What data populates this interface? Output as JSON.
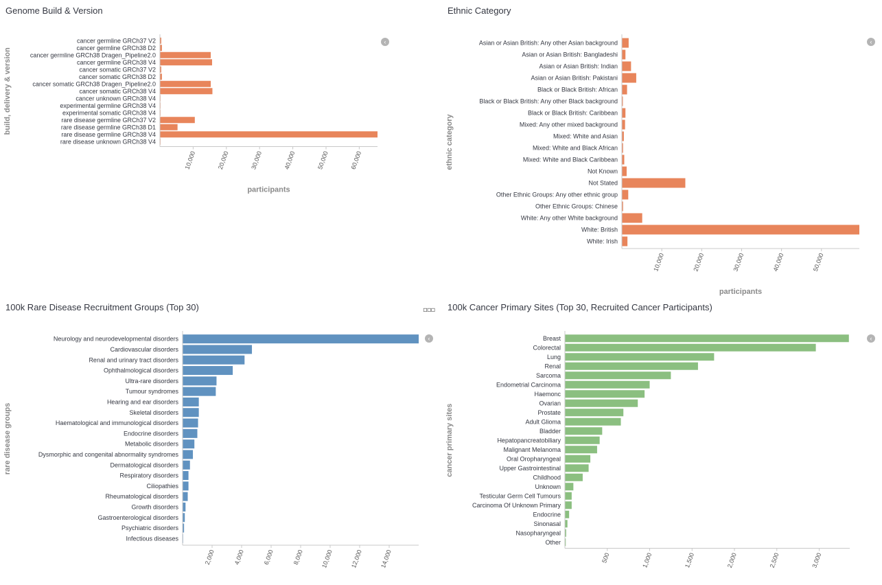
{
  "panels": [
    {
      "title": "Genome Build & Version",
      "icon": "chevron-left-icon",
      "chart_data": {
        "type": "bar",
        "orientation": "horizontal",
        "color": "#e8855b",
        "ylabel": "build, delivery & version",
        "xlabel": "participants",
        "xlim": [
          0,
          65500
        ],
        "xticks": [
          10000,
          20000,
          30000,
          40000,
          50000,
          60000
        ],
        "xtick_labels": [
          "10,000",
          "20,000",
          "30,000",
          "40,000",
          "50,000",
          "60,000"
        ],
        "categories": [
          "cancer germline GRCh37 V2",
          "cancer germline GRCh38 D2",
          "cancer germline GRCh38 Dragen_Pipeline2.0",
          "cancer germline GRCh38 V4",
          "cancer somatic GRCh37 V2",
          "cancer somatic GRCh38 D2",
          "cancer somatic GRCh38 Dragen_Pipeline2.0",
          "cancer somatic GRCh38 V4",
          "cancer unknown GRCh38 V4",
          "experimental germline GRCh38 V4",
          "experimental somatic GRCh38 V4",
          "rare disease germline GRCh37 V2",
          "rare disease germline GRCh38 D1",
          "rare disease germline GRCh38 V4",
          "rare disease unknown GRCh38 V4"
        ],
        "values": [
          400,
          600,
          15300,
          15700,
          400,
          600,
          15300,
          15800,
          80,
          80,
          80,
          10500,
          5300,
          65500,
          80
        ]
      }
    },
    {
      "title": "Ethnic Category",
      "icon": "chevron-left-icon",
      "chart_data": {
        "type": "bar",
        "orientation": "horizontal",
        "color": "#e8855b",
        "ylabel": "ethnic category",
        "xlabel": "participants",
        "xlim": [
          0,
          59500
        ],
        "xticks": [
          10000,
          20000,
          30000,
          40000,
          50000
        ],
        "xtick_labels": [
          "10,000",
          "20,000",
          "30,000",
          "40,000",
          "50,000"
        ],
        "categories": [
          "Asian or Asian British: Any other Asian background",
          "Asian or Asian British: Bangladeshi",
          "Asian or Asian British: Indian",
          "Asian or Asian British: Pakistani",
          "Black or Black British: African",
          "Black or Black British: Any other Black background",
          "Black or Black British: Caribbean",
          "Mixed: Any other mixed background",
          "Mixed: White and Asian",
          "Mixed: White and Black African",
          "Mixed: White and Black Caribbean",
          "Not Known",
          "Not Stated",
          "Other Ethnic Groups: Any other ethnic group",
          "Other Ethnic Groups: Chinese",
          "White: Any other White background",
          "White: British",
          "White: Irish"
        ],
        "values": [
          1700,
          900,
          2300,
          3600,
          1300,
          250,
          900,
          800,
          500,
          300,
          600,
          1200,
          15900,
          1600,
          300,
          5100,
          59500,
          1400
        ]
      }
    },
    {
      "title": "100k Rare Disease Recruitment Groups (Top 30)",
      "icon": "chevron-left-icon",
      "menu_icon": "more-options-icon",
      "menu_glyph": "▫▫▫",
      "chart_data": {
        "type": "bar",
        "orientation": "horizontal",
        "color": "#6092c0",
        "ylabel": "rare disease groups",
        "xlabel": "participants",
        "xlim": [
          0,
          16000
        ],
        "xticks": [
          2000,
          4000,
          6000,
          8000,
          10000,
          12000,
          14000
        ],
        "xtick_labels": [
          "2,000",
          "4,000",
          "6,000",
          "8,000",
          "10,000",
          "12,000",
          "14,000"
        ],
        "categories": [
          "Neurology and neurodevelopmental disorders",
          "Cardiovascular disorders",
          "Renal and urinary tract disorders",
          "Ophthalmological disorders",
          "Ultra-rare disorders",
          "Tumour syndromes",
          "Hearing and ear disorders",
          "Skeletal disorders",
          "Haematological and immunological disorders",
          "Endocrine disorders",
          "Metabolic disorders",
          "Dysmorphic and congenital abnormality syndromes",
          "Dermatological disorders",
          "Respiratory disorders",
          "Ciliopathies",
          "Rheumatological disorders",
          "Growth disorders",
          "Gastroenterological disorders",
          "Psychiatric disorders",
          "Infectious diseases"
        ],
        "values": [
          16000,
          4700,
          4200,
          3400,
          2300,
          2250,
          1100,
          1100,
          1050,
          1000,
          800,
          700,
          500,
          400,
          400,
          350,
          200,
          150,
          100,
          20
        ]
      }
    },
    {
      "title": "100k Cancer Primary Sites (Top 30, Recruited Cancer Participants)",
      "icon": "chevron-left-icon",
      "chart_data": {
        "type": "bar",
        "orientation": "horizontal",
        "color": "#8bbf80",
        "ylabel": "cancer primary sites",
        "xlabel": "participants",
        "xlim": [
          0,
          3360
        ],
        "xticks": [
          500,
          1000,
          1500,
          2000,
          2500,
          3000
        ],
        "xtick_labels": [
          "500",
          "1,000",
          "1,500",
          "2,000",
          "2,500",
          "3,000"
        ],
        "categories": [
          "Breast",
          "Colorectal",
          "Lung",
          "Renal",
          "Sarcoma",
          "Endometrial Carcinoma",
          "Haemonc",
          "Ovarian",
          "Prostate",
          "Adult Glioma",
          "Bladder",
          "Hepatopancreatobiliary",
          "Malignant Melanoma",
          "Oral Oropharyngeal",
          "Upper Gastrointestinal",
          "Childhood",
          "Unknown",
          "Testicular Germ Cell Tumours",
          "Carcinoma Of Unknown Primary",
          "Endocrine",
          "Sinonasal",
          "Nasopharyngeal",
          "Other"
        ],
        "values": [
          3350,
          2960,
          1760,
          1570,
          1250,
          1000,
          940,
          860,
          690,
          660,
          440,
          410,
          380,
          300,
          280,
          210,
          100,
          80,
          80,
          50,
          30,
          15,
          10
        ]
      }
    }
  ]
}
